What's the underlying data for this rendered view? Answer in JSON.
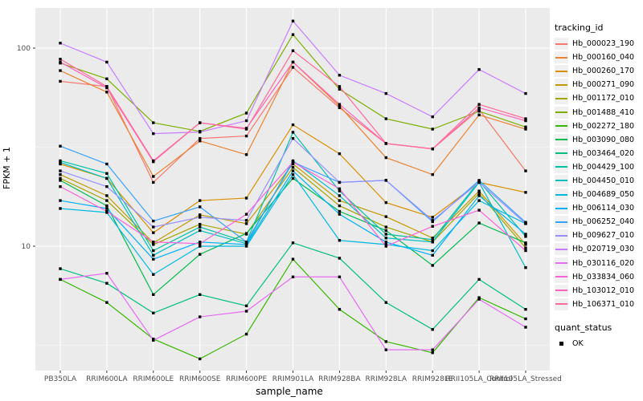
{
  "figure": {
    "x_axis_title": "sample_name",
    "y_axis_title": "FPKM + 1"
  },
  "legend": {
    "tracking_title": "tracking_id",
    "quant_title": "quant_status",
    "quant_items": [
      "OK"
    ]
  },
  "chart_data": {
    "type": "line",
    "xlabel": "sample_name",
    "ylabel": "FPKM + 1",
    "y_scale": "log10",
    "ylim": [
      2.5,
      160
    ],
    "grid": "on",
    "legend_position": "right",
    "panel_bg": "#ebebeb",
    "grid_major_color": "#ffffff",
    "grid_minor_color": "#f5f5f5",
    "tick_label_color": "#4d4d4d",
    "marker": {
      "shape": "square",
      "color": "#000000",
      "legend_label": "OK"
    },
    "y_ticks": [
      {
        "label": "100",
        "value": 100
      },
      {
        "label": "10",
        "value": 10
      }
    ],
    "y_minor": [
      31.62,
      3.162
    ],
    "categories": [
      "PB350LA",
      "RRIM600LA",
      "RRIM600LE",
      "RRIM600SE",
      "RRIM600PE",
      "RRIM901LA",
      "RRIM928BA",
      "RRIM928LA",
      "RRIM928LE",
      "RRII105LA_Control",
      "RRII105LA_Stressed"
    ],
    "series": [
      {
        "name": "Hb_000023_190",
        "color": "#F8766D",
        "values": [
          68,
          64,
          21,
          35,
          36,
          80,
          50,
          33,
          31,
          49,
          24
        ]
      },
      {
        "name": "Hb_000160_040",
        "color": "#EA8331",
        "values": [
          77,
          60,
          22.5,
          34,
          29,
          85,
          51,
          28,
          23,
          46,
          39
        ]
      },
      {
        "name": "Hb_000260_170",
        "color": "#D89000",
        "values": [
          26,
          22,
          11.7,
          17,
          17.5,
          41,
          29.3,
          16.6,
          14,
          21,
          18.7
        ]
      },
      {
        "name": "Hb_000271_090",
        "color": "#C09B00",
        "values": [
          23,
          18,
          10.4,
          14.4,
          13,
          26,
          17,
          14.1,
          11,
          19,
          10.2
        ]
      },
      {
        "name": "Hb_001172_010",
        "color": "#A3A500",
        "values": [
          22,
          17,
          10.2,
          12.9,
          11.5,
          25,
          16,
          12.5,
          10.5,
          18.5,
          9.8
        ]
      },
      {
        "name": "Hb_001488_410",
        "color": "#7CAE00",
        "values": [
          84,
          70,
          42,
          38,
          47,
          117,
          62,
          44,
          39,
          48,
          40
        ]
      },
      {
        "name": "Hb_002272_180",
        "color": "#39B600",
        "values": [
          6.8,
          5.2,
          3.4,
          2.7,
          3.6,
          8.6,
          4.8,
          3.3,
          2.9,
          5.5,
          4.3
        ]
      },
      {
        "name": "Hb_003090_080",
        "color": "#00BB4E",
        "values": [
          21.5,
          16,
          5.7,
          9.1,
          11.6,
          22,
          15,
          12,
          8,
          13.1,
          10.4
        ]
      },
      {
        "name": "Hb_003464_020",
        "color": "#00BF7D",
        "values": [
          7.7,
          6.5,
          4.6,
          5.7,
          5.0,
          10.4,
          8.7,
          5.2,
          3.8,
          6.8,
          4.8
        ]
      },
      {
        "name": "Hb_004429_100",
        "color": "#00C1A3",
        "values": [
          27,
          23.3,
          9.5,
          12.5,
          10.5,
          37.6,
          19,
          11.5,
          10.8,
          21.3,
          11.2
        ]
      },
      {
        "name": "Hb_004450_010",
        "color": "#00BFC4",
        "values": [
          26.5,
          22,
          9,
          12,
          10.3,
          27,
          18,
          11,
          10.5,
          21,
          7.8
        ]
      },
      {
        "name": "Hb_004689_050",
        "color": "#00BAE0",
        "values": [
          15.5,
          14.8,
          7.2,
          10,
          10,
          23,
          10.7,
          10.2,
          9.5,
          17,
          13
        ]
      },
      {
        "name": "Hb_006114_030",
        "color": "#00B0F6",
        "values": [
          17,
          15.5,
          8.6,
          10.5,
          10.2,
          24,
          14.5,
          10.5,
          9,
          18,
          11.5
        ]
      },
      {
        "name": "Hb_006252_040",
        "color": "#35A2FF",
        "values": [
          32,
          26,
          13.4,
          15.8,
          10.5,
          26.6,
          21,
          21.5,
          13.3,
          21.5,
          13.2
        ]
      },
      {
        "name": "Hb_009627_010",
        "color": "#9590FF",
        "values": [
          24,
          20,
          12.5,
          14,
          13.5,
          35,
          21,
          21.5,
          13.5,
          21,
          13
        ]
      },
      {
        "name": "Hb_020719_030",
        "color": "#C77CFF",
        "values": [
          106,
          85,
          37,
          37.7,
          43,
          137,
          73,
          59,
          45,
          78,
          59
        ]
      },
      {
        "name": "Hb_030116_020",
        "color": "#E76BF3",
        "values": [
          6.8,
          7.3,
          3.35,
          4.4,
          4.7,
          7.0,
          7.0,
          3.0,
          3.0,
          5.4,
          3.9
        ]
      },
      {
        "name": "Hb_033834_060",
        "color": "#FA62DB",
        "values": [
          20,
          15,
          10.5,
          10.3,
          14.5,
          26.6,
          19.5,
          10,
          12.6,
          15.2,
          9.5
        ]
      },
      {
        "name": "Hb_103012_010",
        "color": "#FF62BC",
        "values": [
          85,
          63,
          26.7,
          42,
          39.4,
          85,
          52,
          33,
          31,
          50,
          43
        ]
      },
      {
        "name": "Hb_106371_010",
        "color": "#FF6A98",
        "values": [
          88,
          64,
          27,
          42,
          39,
          97,
          64,
          33,
          31,
          52,
          44
        ]
      }
    ]
  }
}
